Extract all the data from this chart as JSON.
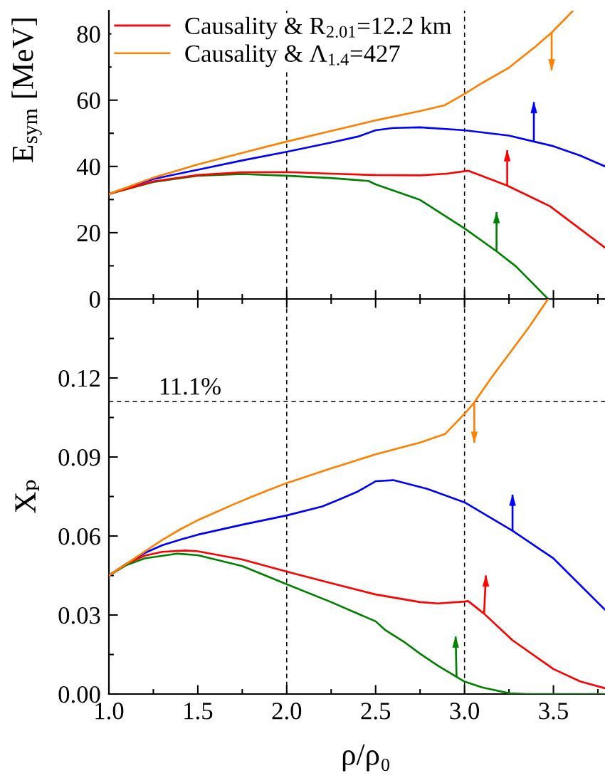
{
  "chart_data": [
    {
      "type": "line",
      "ylabel": "E$_{sym}$ [MeV]",
      "xlim": [
        1.0,
        3.79
      ],
      "ylim": [
        0,
        87
      ],
      "xticks": [
        1.0,
        {
          "value": 1.25,
          "label": null
        },
        1.5,
        {
          "value": 1.75,
          "label": null
        },
        2.0,
        {
          "value": 2.25,
          "label": null
        },
        2.5,
        {
          "value": 2.75,
          "label": null
        },
        3.0,
        {
          "value": 3.25,
          "label": null
        },
        3.5,
        {
          "value": 3.75,
          "label": null
        }
      ],
      "yticks": [
        0,
        {
          "value": 10,
          "label": null
        },
        20,
        {
          "value": 30,
          "label": null
        },
        40,
        {
          "value": 50,
          "label": null
        },
        60,
        {
          "value": 70,
          "label": null
        },
        80
      ],
      "tick_labels": "y",
      "legend": "top left",
      "ref_lines": [
        {
          "axis": "x",
          "value": 2.0,
          "color": "#000000",
          "line_style": "dashed"
        },
        {
          "axis": "x",
          "value": 3.0,
          "color": "#000000",
          "line_style": "dashed"
        }
      ],
      "series": [
        {
          "color": "#0000ff",
          "x": [
            1.0,
            1.25,
            1.5,
            1.75,
            2.0,
            2.25,
            2.4,
            2.5,
            2.6,
            2.75,
            3.0,
            3.25,
            3.39,
            3.5,
            3.65,
            3.79
          ],
          "values": [
            31.7,
            36.2,
            39.0,
            41.8,
            44.4,
            47.2,
            49.0,
            50.9,
            51.6,
            51.8,
            50.9,
            49.3,
            47.5,
            46.1,
            43.3,
            40.0
          ]
        },
        {
          "color": "#008000",
          "x": [
            1.0,
            1.25,
            1.5,
            1.75,
            2.0,
            2.25,
            2.46,
            2.5,
            2.75,
            3.0,
            3.18,
            3.29,
            3.47
          ],
          "values": [
            31.7,
            35.3,
            37.2,
            37.7,
            37.2,
            36.5,
            35.6,
            34.6,
            29.9,
            21.3,
            14.4,
            9.8,
            0
          ]
        },
        {
          "name": "Causality & R$_{2.01}$=12.2 km",
          "color": "#ff0000",
          "x": [
            1.0,
            1.25,
            1.5,
            1.75,
            2.0,
            2.25,
            2.5,
            2.75,
            2.9,
            3.02,
            3.12,
            3.24,
            3.48,
            3.79
          ],
          "values": [
            31.7,
            35.5,
            37.4,
            38.2,
            38.3,
            37.8,
            37.4,
            37.3,
            37.8,
            38.7,
            36.7,
            34.2,
            28.0,
            15.5
          ]
        },
        {
          "name": "Causality & Λ$_{1.4}$=427",
          "color": "#ff8000",
          "x": [
            1.0,
            1.25,
            1.5,
            1.75,
            2.0,
            2.25,
            2.5,
            2.75,
            2.89,
            3.0,
            3.1,
            3.25,
            3.4,
            3.49,
            3.61
          ],
          "values": [
            31.7,
            36.6,
            40.6,
            44.1,
            47.5,
            50.7,
            53.9,
            56.7,
            58.5,
            61.9,
            65.2,
            69.8,
            76.2,
            80.4,
            87.0
          ]
        },
        {
          "color": "#ff8000",
          "x": [
            3.49,
            3.49
          ],
          "values": [
            80.4,
            69.0
          ]
        },
        {
          "color": "#0000ff",
          "x": [
            3.39,
            3.39
          ],
          "values": [
            47.5,
            59.4
          ]
        },
        {
          "color": "#ff0000",
          "x": [
            3.24,
            3.24
          ],
          "values": [
            34.2,
            44.9
          ]
        },
        {
          "color": "#008000",
          "x": [
            3.18,
            3.18
          ],
          "values": [
            14.4,
            26.2
          ]
        }
      ]
    },
    {
      "type": "line",
      "xlabel": "ρ/ρ₀",
      "ylabel": "Xₚ",
      "xlim": [
        1.0,
        3.79
      ],
      "ylim": [
        0,
        0.15
      ],
      "xticks": [
        {
          "value": 1.0,
          "label": "1.0"
        },
        {
          "value": 1.25,
          "label": null
        },
        {
          "value": 1.5,
          "label": "1.5"
        },
        {
          "value": 1.75,
          "label": null
        },
        {
          "value": 2.0,
          "label": "2.0"
        },
        {
          "value": 2.25,
          "label": null
        },
        {
          "value": 2.5,
          "label": "2.5"
        },
        {
          "value": 2.75,
          "label": null
        },
        {
          "value": 3.0,
          "label": "3.0"
        },
        {
          "value": 3.25,
          "label": null
        },
        {
          "value": 3.5,
          "label": "3.5"
        },
        {
          "value": 3.75,
          "label": null
        }
      ],
      "yticks": [
        {
          "value": 0,
          "label": "0.00"
        },
        {
          "value": 0.015,
          "label": null
        },
        {
          "value": 0.03,
          "label": "0.03"
        },
        {
          "value": 0.045,
          "label": null
        },
        {
          "value": 0.06,
          "label": "0.06"
        },
        {
          "value": 0.075,
          "label": null
        },
        {
          "value": 0.09,
          "label": "0.09"
        },
        {
          "value": 0.105,
          "label": null
        },
        {
          "value": 0.12,
          "label": "0.12"
        },
        {
          "value": 0.135,
          "label": null
        }
      ],
      "ref_lines": [
        {
          "axis": "x",
          "value": 2.0,
          "color": "#000000",
          "line_style": "dashed"
        },
        {
          "axis": "x",
          "value": 3.0,
          "color": "#000000",
          "line_style": "dashed"
        },
        {
          "axis": "y",
          "value": 0.111,
          "label": "11.1%",
          "color": "#000000",
          "line_style": "dashed"
        }
      ],
      "series": [
        {
          "color": "#0000ff",
          "x": [
            1.0,
            1.1,
            1.2,
            1.3,
            1.41,
            1.5,
            1.75,
            2.0,
            2.2,
            2.3,
            2.4,
            2.5,
            2.6,
            2.79,
            3.0,
            3.27,
            3.5,
            3.79
          ],
          "values": [
            0.045,
            0.0495,
            0.0535,
            0.0565,
            0.0588,
            0.0605,
            0.0643,
            0.0678,
            0.0712,
            0.074,
            0.0769,
            0.0808,
            0.0812,
            0.0779,
            0.0728,
            0.062,
            0.0515,
            0.032
          ]
        },
        {
          "color": "#008000",
          "x": [
            1.0,
            1.1,
            1.2,
            1.385,
            1.5,
            1.75,
            2.0,
            2.25,
            2.5,
            2.556,
            2.664,
            2.75,
            2.85,
            2.955,
            3.0,
            3.1,
            3.25,
            3.35,
            3.79
          ],
          "values": [
            0.045,
            0.049,
            0.0515,
            0.0533,
            0.0527,
            0.0486,
            0.0417,
            0.0349,
            0.0276,
            0.0242,
            0.0196,
            0.0153,
            0.0108,
            0.0065,
            0.0047,
            0.0025,
            0.0003,
            0.0,
            0.0
          ]
        },
        {
          "color": "#ff0000",
          "x": [
            1.0,
            1.1,
            1.2,
            1.3,
            1.43,
            1.5,
            1.75,
            2.0,
            2.25,
            2.5,
            2.75,
            2.85,
            3.0,
            3.02,
            3.11,
            3.27,
            3.5,
            3.65,
            3.79
          ],
          "values": [
            0.045,
            0.0495,
            0.0525,
            0.054,
            0.0545,
            0.0542,
            0.0511,
            0.0465,
            0.0421,
            0.0378,
            0.0349,
            0.0344,
            0.0351,
            0.0353,
            0.0305,
            0.0204,
            0.0095,
            0.0048,
            0.0022
          ]
        },
        {
          "color": "#ff8000",
          "x": [
            1.0,
            1.1,
            1.2,
            1.3,
            1.4,
            1.5,
            1.6,
            1.7,
            1.8,
            1.9,
            2.0,
            2.25,
            2.5,
            2.75,
            2.89,
            3.0,
            3.05,
            3.15,
            3.27,
            3.37,
            3.47
          ],
          "values": [
            0.045,
            0.0495,
            0.054,
            0.0585,
            0.0625,
            0.066,
            0.069,
            0.072,
            0.0748,
            0.0775,
            0.0801,
            0.0857,
            0.091,
            0.0955,
            0.0987,
            0.1064,
            0.1103,
            0.12,
            0.1309,
            0.14,
            0.15
          ]
        },
        {
          "color": "#ff8000",
          "x": [
            3.055,
            3.055
          ],
          "values": [
            0.1103,
            0.0954
          ]
        },
        {
          "color": "#0000ff",
          "x": [
            3.27,
            3.27
          ],
          "values": [
            0.062,
            0.0757
          ]
        },
        {
          "color": "#ff0000",
          "x": [
            3.11,
            3.12
          ],
          "values": [
            0.0305,
            0.045
          ]
        },
        {
          "color": "#008000",
          "x": [
            2.955,
            2.95
          ],
          "values": [
            0.0065,
            0.0218
          ]
        }
      ]
    }
  ]
}
